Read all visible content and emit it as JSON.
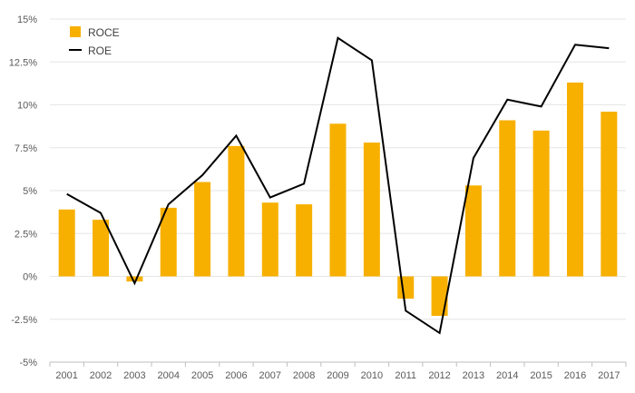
{
  "chart_data": {
    "type": "bar",
    "title": "",
    "xlabel": "",
    "ylabel": "",
    "categories": [
      "2001",
      "2002",
      "2003",
      "2004",
      "2005",
      "2006",
      "2007",
      "2008",
      "2009",
      "2010",
      "2011",
      "2012",
      "2013",
      "2014",
      "2015",
      "2016",
      "2017"
    ],
    "series": [
      {
        "name": "ROCE",
        "type": "bar",
        "color": "#F7B000",
        "values": [
          3.9,
          3.3,
          -0.3,
          4.0,
          5.5,
          7.6,
          4.3,
          4.2,
          8.9,
          7.8,
          -1.3,
          -2.3,
          5.3,
          9.1,
          8.5,
          11.3,
          9.6
        ]
      },
      {
        "name": "ROE",
        "type": "line",
        "color": "#000000",
        "values": [
          4.8,
          3.7,
          -0.4,
          4.2,
          5.9,
          8.2,
          4.6,
          5.4,
          13.9,
          12.6,
          -2.0,
          -3.3,
          6.9,
          10.3,
          9.9,
          13.5,
          13.3
        ]
      }
    ],
    "y_ticks": [
      "-5%",
      "-2.5%",
      "0%",
      "2.5%",
      "5%",
      "7.5%",
      "10%",
      "12.5%",
      "15%"
    ],
    "ylim": [
      -5,
      15
    ],
    "y_unit": "%",
    "grid": true,
    "legend_position": "top-left"
  }
}
